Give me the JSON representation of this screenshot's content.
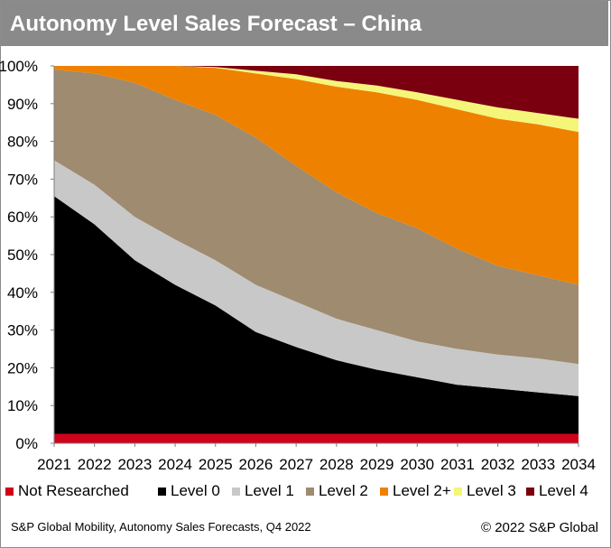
{
  "header": {
    "title": "Autonomy Level Sales Forecast – China"
  },
  "chart_data": {
    "type": "area",
    "stacked": true,
    "percent": true,
    "title": "Autonomy Level Sales Forecast – China",
    "categories": [
      "2021",
      "2022",
      "2023",
      "2024",
      "2025",
      "2026",
      "2027",
      "2028",
      "2029",
      "2030",
      "2031",
      "2032",
      "2033",
      "2034"
    ],
    "ylim": [
      0,
      100
    ],
    "y_ticks": [
      "0%",
      "10%",
      "20%",
      "30%",
      "40%",
      "50%",
      "60%",
      "70%",
      "80%",
      "90%",
      "100%"
    ],
    "grid": false,
    "legend_position": "bottom",
    "series": [
      {
        "name": "Not Researched",
        "color": "#d0021b",
        "values": [
          2.5,
          2.5,
          2.5,
          2.5,
          2.5,
          2.5,
          2.5,
          2.5,
          2.5,
          2.5,
          2.5,
          2.5,
          2.5,
          2.5
        ]
      },
      {
        "name": "Level 0",
        "color": "#000000",
        "values": [
          63,
          55.5,
          46,
          39.5,
          34,
          27,
          23,
          19.5,
          17,
          15,
          13,
          12,
          11,
          10
        ]
      },
      {
        "name": "Level 1",
        "color": "#c8c8c8",
        "values": [
          9.5,
          10.5,
          11.5,
          12,
          12,
          12.5,
          12,
          11,
          10.5,
          9.5,
          9.5,
          9,
          9,
          8.5
        ]
      },
      {
        "name": "Level 2",
        "color": "#9e8b70",
        "values": [
          24,
          29.5,
          35.5,
          37,
          38.5,
          39,
          36,
          33.5,
          31,
          30,
          26.5,
          23.5,
          22,
          21
        ]
      },
      {
        "name": "Level 2+",
        "color": "#ee8200",
        "values": [
          1,
          2,
          4.5,
          9,
          12.5,
          17,
          23,
          28,
          32,
          34,
          37,
          39,
          40,
          40.5
        ]
      },
      {
        "name": "Level 3",
        "color": "#f5f57a",
        "values": [
          0,
          0,
          0,
          0,
          0.2,
          0.7,
          1.3,
          1.5,
          1.8,
          2,
          2.5,
          3,
          3,
          3.5
        ]
      },
      {
        "name": "Level 4",
        "color": "#7a0010",
        "values": [
          0,
          0,
          0,
          0,
          0.3,
          1.3,
          2.2,
          4,
          5.2,
          7,
          9,
          11,
          12.5,
          14
        ]
      }
    ]
  },
  "footer": {
    "source": "S&P Global Mobility, Autonomy Sales Forecasts, Q4 2022",
    "copyright": "© 2022 S&P Global"
  }
}
